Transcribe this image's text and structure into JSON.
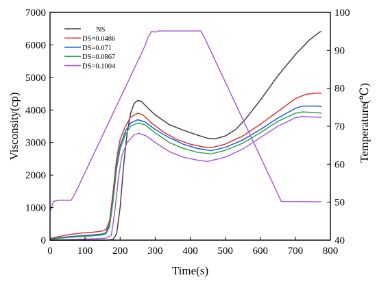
{
  "chart_data": {
    "type": "line",
    "xlabel": "Time(s)",
    "ylabel": "Visconsity(cp)",
    "ylabel_right": "Temperature(℃)",
    "xlim": [
      0,
      800
    ],
    "ylim": [
      0,
      7000
    ],
    "ylim_right": [
      40,
      100
    ],
    "x_ticks": [
      0,
      100,
      200,
      300,
      400,
      500,
      600,
      700,
      800
    ],
    "y_ticks": [
      0,
      1000,
      2000,
      3000,
      4000,
      5000,
      6000,
      7000
    ],
    "y_ticks_right": [
      40,
      50,
      60,
      70,
      80,
      90,
      100
    ],
    "grid": false,
    "legend_position": "top-left",
    "series": [
      {
        "name": "NS",
        "color": "#404040",
        "axis": "left",
        "points": [
          [
            0,
            0
          ],
          [
            60,
            0
          ],
          [
            120,
            0
          ],
          [
            160,
            0
          ],
          [
            180,
            20
          ],
          [
            190,
            200
          ],
          [
            200,
            1000
          ],
          [
            210,
            2300
          ],
          [
            220,
            3300
          ],
          [
            230,
            3900
          ],
          [
            240,
            4200
          ],
          [
            250,
            4290
          ],
          [
            260,
            4270
          ],
          [
            280,
            4050
          ],
          [
            300,
            3850
          ],
          [
            340,
            3550
          ],
          [
            380,
            3380
          ],
          [
            420,
            3230
          ],
          [
            450,
            3130
          ],
          [
            470,
            3110
          ],
          [
            500,
            3200
          ],
          [
            530,
            3400
          ],
          [
            560,
            3750
          ],
          [
            600,
            4300
          ],
          [
            650,
            5050
          ],
          [
            700,
            5700
          ],
          [
            740,
            6150
          ],
          [
            770,
            6400
          ],
          [
            775,
            6410
          ]
        ]
      },
      {
        "name": "DS=0.0486",
        "color": "#e03030",
        "axis": "left",
        "points": [
          [
            0,
            50
          ],
          [
            30,
            120
          ],
          [
            60,
            180
          ],
          [
            90,
            220
          ],
          [
            120,
            240
          ],
          [
            150,
            280
          ],
          [
            160,
            330
          ],
          [
            170,
            600
          ],
          [
            180,
            1500
          ],
          [
            190,
            2500
          ],
          [
            200,
            3100
          ],
          [
            215,
            3500
          ],
          [
            230,
            3780
          ],
          [
            250,
            3900
          ],
          [
            265,
            3850
          ],
          [
            290,
            3600
          ],
          [
            320,
            3350
          ],
          [
            360,
            3100
          ],
          [
            400,
            2950
          ],
          [
            440,
            2860
          ],
          [
            460,
            2840
          ],
          [
            500,
            2950
          ],
          [
            550,
            3200
          ],
          [
            600,
            3560
          ],
          [
            650,
            3950
          ],
          [
            700,
            4350
          ],
          [
            730,
            4480
          ],
          [
            760,
            4520
          ],
          [
            775,
            4510
          ]
        ]
      },
      {
        "name": "DS=0.071",
        "color": "#1a5ce0",
        "axis": "left",
        "points": [
          [
            0,
            30
          ],
          [
            30,
            80
          ],
          [
            60,
            110
          ],
          [
            90,
            140
          ],
          [
            120,
            160
          ],
          [
            150,
            190
          ],
          [
            160,
            240
          ],
          [
            170,
            500
          ],
          [
            180,
            1300
          ],
          [
            190,
            2300
          ],
          [
            200,
            2900
          ],
          [
            215,
            3350
          ],
          [
            230,
            3600
          ],
          [
            250,
            3700
          ],
          [
            270,
            3640
          ],
          [
            300,
            3400
          ],
          [
            340,
            3150
          ],
          [
            380,
            2950
          ],
          [
            420,
            2820
          ],
          [
            460,
            2750
          ],
          [
            500,
            2850
          ],
          [
            550,
            3080
          ],
          [
            600,
            3400
          ],
          [
            650,
            3750
          ],
          [
            700,
            4050
          ],
          [
            720,
            4120
          ],
          [
            760,
            4120
          ],
          [
            775,
            4110
          ]
        ]
      },
      {
        "name": "DS=0.0867",
        "color": "#2aa44a",
        "axis": "left",
        "points": [
          [
            0,
            20
          ],
          [
            30,
            60
          ],
          [
            60,
            90
          ],
          [
            90,
            110
          ],
          [
            120,
            130
          ],
          [
            150,
            160
          ],
          [
            160,
            200
          ],
          [
            170,
            420
          ],
          [
            180,
            1200
          ],
          [
            190,
            2200
          ],
          [
            200,
            2800
          ],
          [
            215,
            3250
          ],
          [
            230,
            3500
          ],
          [
            250,
            3600
          ],
          [
            270,
            3550
          ],
          [
            300,
            3300
          ],
          [
            340,
            3000
          ],
          [
            380,
            2820
          ],
          [
            420,
            2700
          ],
          [
            460,
            2650
          ],
          [
            500,
            2760
          ],
          [
            550,
            2980
          ],
          [
            600,
            3300
          ],
          [
            650,
            3650
          ],
          [
            700,
            3900
          ],
          [
            720,
            3940
          ],
          [
            760,
            3920
          ],
          [
            775,
            3900
          ]
        ]
      },
      {
        "name": "DS=0.1004",
        "color": "#a85ad8",
        "axis": "left",
        "points": [
          [
            0,
            0
          ],
          [
            60,
            20
          ],
          [
            120,
            40
          ],
          [
            160,
            60
          ],
          [
            175,
            150
          ],
          [
            185,
            900
          ],
          [
            195,
            1900
          ],
          [
            205,
            2600
          ],
          [
            220,
            3000
          ],
          [
            240,
            3240
          ],
          [
            255,
            3280
          ],
          [
            275,
            3200
          ],
          [
            300,
            3000
          ],
          [
            340,
            2720
          ],
          [
            380,
            2550
          ],
          [
            420,
            2460
          ],
          [
            450,
            2420
          ],
          [
            500,
            2550
          ],
          [
            550,
            2800
          ],
          [
            600,
            3150
          ],
          [
            650,
            3500
          ],
          [
            700,
            3760
          ],
          [
            720,
            3800
          ],
          [
            760,
            3780
          ],
          [
            775,
            3770
          ]
        ]
      },
      {
        "name": "",
        "color": "#a85ad8",
        "axis": "right",
        "points": [
          [
            0,
            47.5
          ],
          [
            10,
            50.2
          ],
          [
            25,
            50.5
          ],
          [
            60,
            50.5
          ],
          [
            70,
            52
          ],
          [
            270,
            91
          ],
          [
            280,
            93.5
          ],
          [
            290,
            95
          ],
          [
            300,
            94.8
          ],
          [
            310,
            95.1
          ],
          [
            430,
            95.1
          ],
          [
            440,
            93.5
          ],
          [
            450,
            91.5
          ],
          [
            660,
            50.2
          ],
          [
            775,
            50.1
          ]
        ]
      }
    ]
  }
}
